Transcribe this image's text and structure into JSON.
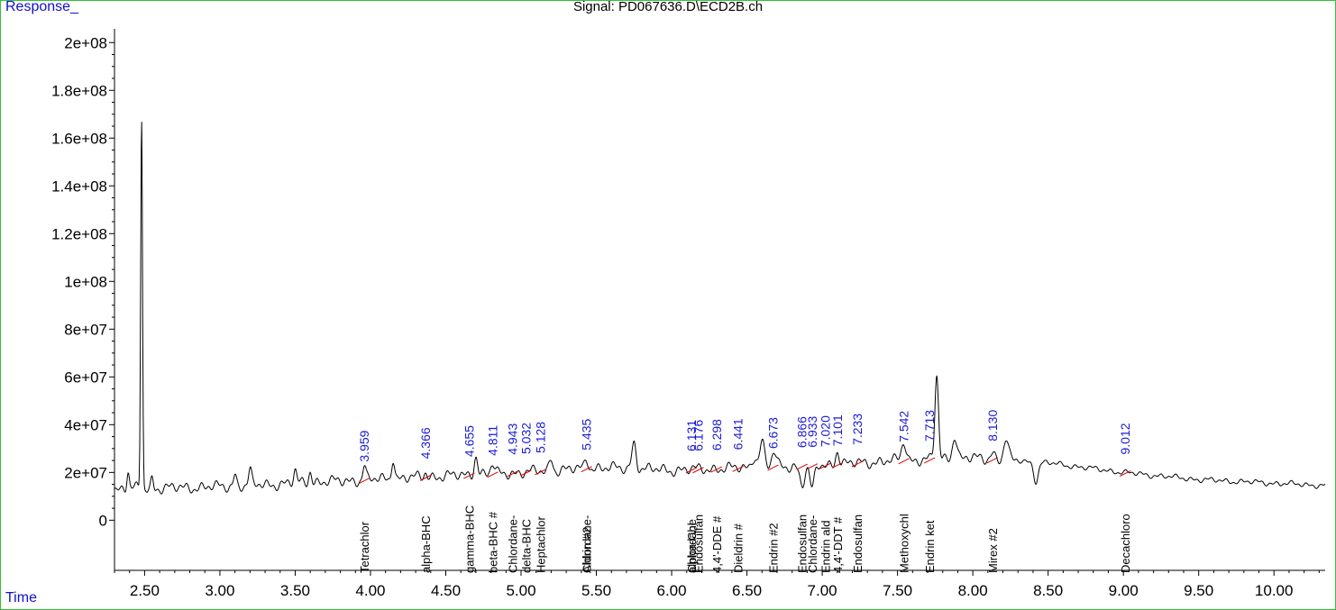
{
  "chart_data": {
    "type": "line",
    "title": "Signal: PD067636.D\\ECD2B.ch",
    "ylabel": "Response_",
    "xlabel": "Time",
    "xlim": [
      2.3,
      10.34
    ],
    "ylim": [
      -21000000.0,
      205000000.0
    ],
    "x_ticks": [
      2.5,
      3.0,
      3.5,
      4.0,
      4.5,
      5.0,
      5.5,
      6.0,
      6.5,
      7.0,
      7.5,
      8.0,
      8.5,
      9.0,
      9.5,
      10.0
    ],
    "x_tick_labels": [
      "2.50",
      "3.00",
      "3.50",
      "4.00",
      "4.50",
      "5.00",
      "5.50",
      "6.00",
      "6.50",
      "7.00",
      "7.50",
      "8.00",
      "8.50",
      "9.00",
      "9.50",
      "10.00"
    ],
    "y_ticks": [
      0,
      20000000,
      40000000,
      60000000,
      80000000,
      100000000,
      120000000,
      140000000,
      160000000,
      180000000,
      200000000
    ],
    "y_tick_labels": [
      "0",
      "2e+07",
      "4e+07",
      "6e+07",
      "8e+07",
      "1e+08",
      "1.2e+08",
      "1.4e+08",
      "1.6e+08",
      "1.8e+08",
      "2e+08"
    ],
    "baseline": [
      [
        2.3,
        13000000
      ],
      [
        3.0,
        14000000
      ],
      [
        4.0,
        17000000
      ],
      [
        5.0,
        20000000
      ],
      [
        5.5,
        22000000
      ],
      [
        6.0,
        21000000
      ],
      [
        6.5,
        22000000
      ],
      [
        7.0,
        23000000
      ],
      [
        7.5,
        25000000
      ],
      [
        8.0,
        26000000
      ],
      [
        8.5,
        24000000
      ],
      [
        9.0,
        20000000
      ],
      [
        9.5,
        17000000
      ],
      [
        10.0,
        15500000
      ],
      [
        10.34,
        14500000
      ]
    ],
    "series": [
      {
        "color": "#000000",
        "peaks": [
          {
            "x": 2.48,
            "height": 156000000,
            "width": 0.006
          },
          {
            "x": 2.39,
            "height": 7000000,
            "width": 0.008
          },
          {
            "x": 2.55,
            "height": 4000000,
            "width": 0.008
          },
          {
            "x": 3.1,
            "height": 5000000,
            "width": 0.01
          },
          {
            "x": 3.2,
            "height": 6000000,
            "width": 0.01
          },
          {
            "x": 3.5,
            "height": 5000000,
            "width": 0.01
          },
          {
            "x": 3.6,
            "height": 5000000,
            "width": 0.01
          },
          {
            "x": 3.959,
            "height": 6000000,
            "width": 0.01
          },
          {
            "x": 4.15,
            "height": 9000000,
            "width": 0.01
          },
          {
            "x": 4.366,
            "height": 2000000,
            "width": 0.01
          },
          {
            "x": 4.7,
            "height": 8000000,
            "width": 0.012
          },
          {
            "x": 4.811,
            "height": 4000000,
            "width": 0.012
          },
          {
            "x": 5.2,
            "height": 5000000,
            "width": 0.012
          },
          {
            "x": 5.435,
            "height": 4000000,
            "width": 0.012
          },
          {
            "x": 5.75,
            "height": 11000000,
            "width": 0.015
          },
          {
            "x": 6.55,
            "height": 5000000,
            "width": 0.015
          },
          {
            "x": 6.6,
            "height": 11000000,
            "width": 0.015
          },
          {
            "x": 6.68,
            "height": 6000000,
            "width": 0.015
          },
          {
            "x": 6.866,
            "height": -8000000,
            "width": 0.015
          },
          {
            "x": 6.933,
            "height": -10000000,
            "width": 0.015
          },
          {
            "x": 7.101,
            "height": 6000000,
            "width": 0.012
          },
          {
            "x": 7.542,
            "height": 8000000,
            "width": 0.015
          },
          {
            "x": 7.76,
            "height": 35000000,
            "width": 0.012
          },
          {
            "x": 7.88,
            "height": 10000000,
            "width": 0.015
          },
          {
            "x": 8.13,
            "height": 3000000,
            "width": 0.015
          },
          {
            "x": 8.22,
            "height": 9000000,
            "width": 0.015
          },
          {
            "x": 8.42,
            "height": -8000000,
            "width": 0.015
          }
        ]
      }
    ],
    "peak_labels": [
      "3.959",
      "4.366",
      "4.655",
      "4.811",
      "4.943",
      "5.032",
      "5.128",
      "5.435",
      "6.131",
      "6.176",
      "6.298",
      "6.441",
      "6.673",
      "6.866",
      "6.933",
      "7.020",
      "7.101",
      "7.233",
      "7.542",
      "7.713",
      "8.130",
      "9.012"
    ],
    "compounds": [
      {
        "x": 3.959,
        "name": "Tetrachlor"
      },
      {
        "x": 4.366,
        "name": "alpha-BHC"
      },
      {
        "x": 4.655,
        "name": "gamma-BHC"
      },
      {
        "x": 4.811,
        "name": "beta-BHC #"
      },
      {
        "x": 4.943,
        "name": "Chlordane-"
      },
      {
        "x": 5.032,
        "name": "delta-BHC"
      },
      {
        "x": 5.128,
        "name": "Heptachlor"
      },
      {
        "x": 5.435,
        "name": "Chlordane-"
      },
      {
        "x": 5.435,
        "name": "Aldrin #2"
      },
      {
        "x": 6.131,
        "name": "Chlordane"
      },
      {
        "x": 6.131,
        "name": "alpha-Chl"
      },
      {
        "x": 6.176,
        "name": "Endosulfan"
      },
      {
        "x": 6.298,
        "name": "4,4'-DDE #"
      },
      {
        "x": 6.441,
        "name": "Dieldrin #"
      },
      {
        "x": 6.673,
        "name": "Endrin #2"
      },
      {
        "x": 6.866,
        "name": "Endosulfan"
      },
      {
        "x": 6.933,
        "name": "Chlordane-"
      },
      {
        "x": 7.02,
        "name": "Endrin ald"
      },
      {
        "x": 7.101,
        "name": "4,4'-DDT #"
      },
      {
        "x": 7.233,
        "name": "Endosulfan"
      },
      {
        "x": 7.542,
        "name": "Methoxychl"
      },
      {
        "x": 7.713,
        "name": "Endrin ket"
      },
      {
        "x": 8.13,
        "name": "Mirex #2"
      },
      {
        "x": 9.012,
        "name": "Decachloro"
      }
    ],
    "colors": {
      "peak_label": "#1a1ad8",
      "axis_label": "#1010d0",
      "integration": "#dd0000",
      "frame": "#35c135"
    }
  }
}
